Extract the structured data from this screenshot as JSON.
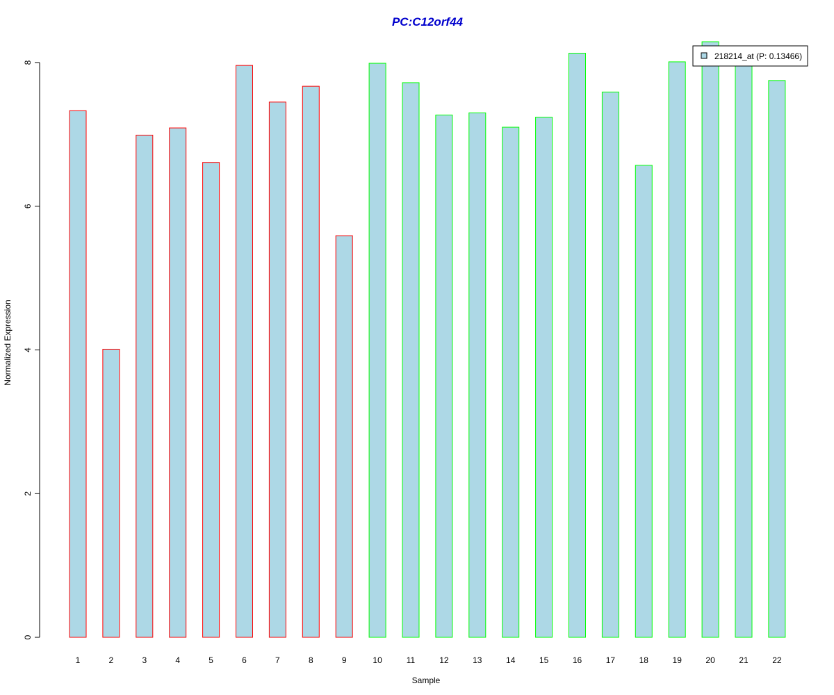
{
  "chart_data": {
    "type": "bar",
    "title": "PC:C12orf44",
    "xlabel": "Sample",
    "ylabel": "Normalized Expression",
    "ylim": [
      0,
      8
    ],
    "yticks": [
      "0",
      "2",
      "4",
      "6",
      "8"
    ],
    "categories": [
      "1",
      "2",
      "3",
      "4",
      "5",
      "6",
      "7",
      "8",
      "9",
      "10",
      "11",
      "12",
      "13",
      "14",
      "15",
      "16",
      "17",
      "18",
      "19",
      "20",
      "21",
      "22"
    ],
    "values": [
      7.33,
      4.01,
      6.99,
      7.09,
      6.61,
      7.96,
      7.45,
      7.67,
      5.59,
      7.99,
      7.72,
      7.27,
      7.3,
      7.1,
      7.24,
      8.13,
      7.59,
      6.57,
      8.01,
      8.29,
      7.97,
      7.75
    ],
    "groups": [
      1,
      1,
      1,
      1,
      1,
      1,
      1,
      1,
      1,
      2,
      2,
      2,
      2,
      2,
      2,
      2,
      2,
      2,
      2,
      2,
      2,
      2
    ],
    "legend": {
      "label": "218214_at (P: 0.13466)",
      "position": "top-right"
    },
    "grid": false,
    "colors": {
      "bar_fill": "#add8e6",
      "group1_border": "#ff0000",
      "group2_border": "#00ff00",
      "title": "#0000cd",
      "axis": "#000000"
    }
  }
}
